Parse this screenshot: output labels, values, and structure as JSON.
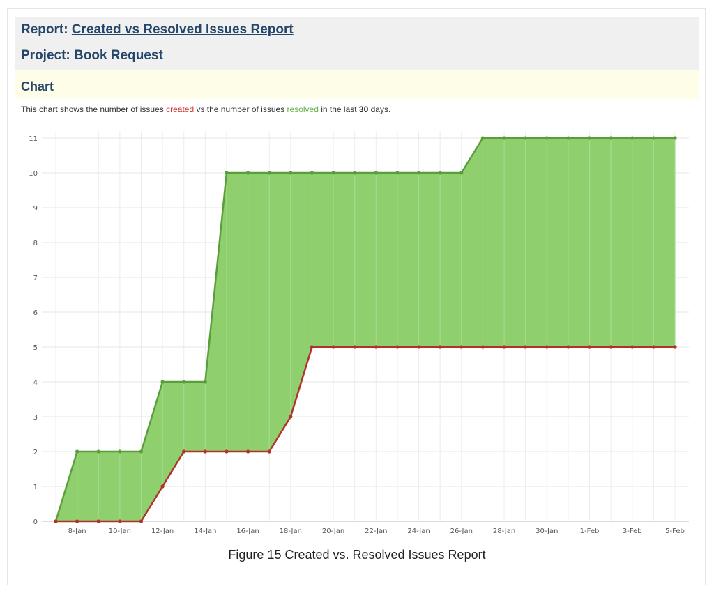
{
  "report": {
    "label": "Report:",
    "title_link": "Created vs Resolved Issues Report"
  },
  "project": {
    "label": "Project:",
    "name": "Book Request"
  },
  "chart_section": {
    "heading": "Chart",
    "desc_1": "This chart shows the number of issues ",
    "desc_created": "created",
    "desc_2": " vs the number of issues ",
    "desc_resolved": "resolved",
    "desc_3": " in the last ",
    "desc_days": "30",
    "desc_4": " days."
  },
  "caption": "Figure 15 Created vs. Resolved Issues Report",
  "chart_data": {
    "type": "area",
    "title": "",
    "xlabel": "",
    "ylabel": "",
    "ylim": [
      0,
      11
    ],
    "yticks": [
      0,
      1,
      2,
      3,
      4,
      5,
      6,
      7,
      8,
      9,
      10,
      11
    ],
    "grid": true,
    "x": [
      "7-Jan",
      "8-Jan",
      "9-Jan",
      "10-Jan",
      "11-Jan",
      "12-Jan",
      "13-Jan",
      "14-Jan",
      "15-Jan",
      "16-Jan",
      "17-Jan",
      "18-Jan",
      "19-Jan",
      "20-Jan",
      "21-Jan",
      "22-Jan",
      "23-Jan",
      "24-Jan",
      "25-Jan",
      "26-Jan",
      "27-Jan",
      "28-Jan",
      "29-Jan",
      "30-Jan",
      "31-Jan",
      "1-Feb",
      "2-Feb",
      "3-Feb",
      "4-Feb",
      "5-Feb"
    ],
    "tick_labels": [
      "8-Jan",
      "10-Jan",
      "12-Jan",
      "14-Jan",
      "16-Jan",
      "18-Jan",
      "20-Jan",
      "22-Jan",
      "24-Jan",
      "26-Jan",
      "28-Jan",
      "30-Jan",
      "1-Feb",
      "3-Feb",
      "5-Feb"
    ],
    "series": [
      {
        "name": "created",
        "color": "#5a9e3c",
        "fill": "#8fcf6e",
        "values": [
          0,
          2,
          2,
          2,
          2,
          4,
          4,
          4,
          10,
          10,
          10,
          10,
          10,
          10,
          10,
          10,
          10,
          10,
          10,
          10,
          11,
          11,
          11,
          11,
          11,
          11,
          11,
          11,
          11,
          11
        ]
      },
      {
        "name": "resolved",
        "color": "#b0322a",
        "values": [
          0,
          0,
          0,
          0,
          0,
          1,
          2,
          2,
          2,
          2,
          2,
          3,
          5,
          5,
          5,
          5,
          5,
          5,
          5,
          5,
          5,
          5,
          5,
          5,
          5,
          5,
          5,
          5,
          5,
          5
        ]
      }
    ]
  }
}
